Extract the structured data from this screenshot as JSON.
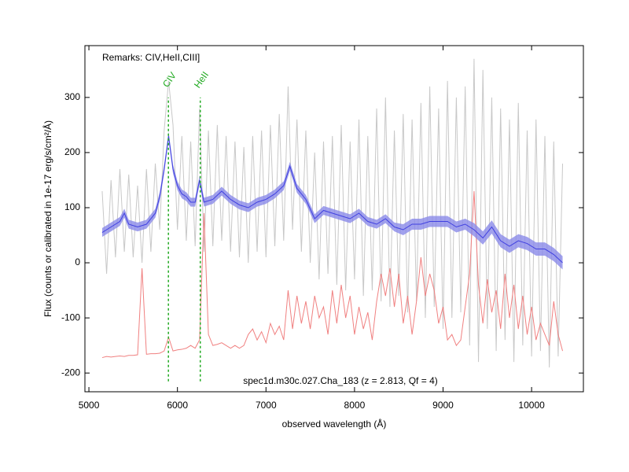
{
  "chart_data": {
    "type": "line",
    "title": "spec1d.m30c.027.Cha_183 (z = 2.813, Qf = 4)",
    "remarks": "Remarks: CIV,HeII,CIII]",
    "x_label": "observed wavelength (Å)",
    "y_label": "Flux (counts or calibrated in 1e-17 erg/s/cm²/Å)",
    "xlim": [
      4955,
      10585
    ],
    "ylim": [
      -234,
      394
    ],
    "xticks": [
      5000,
      6000,
      7000,
      8000,
      9000,
      10000
    ],
    "yticks": [
      -200,
      -100,
      0,
      100,
      200,
      300
    ],
    "annotations": [
      {
        "text": "CIV",
        "x": 5898,
        "ymin": -215,
        "ymax": 300,
        "color": "#22aa22"
      },
      {
        "text": "HeII",
        "x": 6258,
        "ymin": -215,
        "ymax": 300,
        "color": "#22aa22"
      }
    ],
    "series": [
      {
        "color": "#c8c8c8",
        "x": [
          5150,
          5200,
          5250,
          5300,
          5350,
          5400,
          5450,
          5500,
          5550,
          5600,
          5650,
          5700,
          5750,
          5800,
          5850,
          5900,
          5950,
          6000,
          6050,
          6100,
          6150,
          6200,
          6250,
          6300,
          6350,
          6400,
          6450,
          6500,
          6550,
          6600,
          6650,
          6700,
          6750,
          6800,
          6850,
          6900,
          6950,
          7000,
          7050,
          7100,
          7150,
          7200,
          7250,
          7300,
          7350,
          7400,
          7450,
          7500,
          7550,
          7600,
          7650,
          7700,
          7750,
          7800,
          7850,
          7900,
          7950,
          8000,
          8050,
          8100,
          8150,
          8200,
          8250,
          8300,
          8350,
          8400,
          8450,
          8500,
          8550,
          8600,
          8650,
          8700,
          8750,
          8800,
          8850,
          8900,
          8950,
          9000,
          9050,
          9100,
          9150,
          9200,
          9250,
          9300,
          9350,
          9400,
          9450,
          9500,
          9550,
          9600,
          9650,
          9700,
          9750,
          9800,
          9850,
          9900,
          9950,
          10000,
          10050,
          10100,
          10150,
          10200,
          10250,
          10300,
          10350
        ],
        "values": [
          130,
          -20,
          150,
          10,
          170,
          20,
          160,
          10,
          140,
          0,
          170,
          20,
          180,
          60,
          240,
          330,
          250,
          60,
          230,
          40,
          220,
          30,
          280,
          20,
          240,
          30,
          250,
          40,
          230,
          20,
          220,
          10,
          210,
          0,
          230,
          20,
          240,
          10,
          250,
          30,
          270,
          40,
          320,
          60,
          260,
          20,
          240,
          0,
          200,
          -30,
          220,
          -20,
          230,
          -40,
          250,
          -50,
          220,
          -30,
          260,
          -60,
          230,
          -50,
          280,
          -70,
          300,
          -80,
          240,
          -60,
          270,
          -90,
          260,
          -70,
          290,
          -100,
          320,
          -80,
          280,
          -120,
          330,
          -100,
          300,
          -90,
          320,
          -150,
          370,
          -180,
          350,
          -120,
          300,
          -160,
          280,
          -140,
          260,
          -180,
          290,
          -150,
          240,
          -170,
          260,
          -160,
          230,
          -190,
          220,
          -170,
          180
        ]
      },
      {
        "color": "#f08080",
        "x": [
          5150,
          5200,
          5250,
          5300,
          5350,
          5400,
          5450,
          5500,
          5550,
          5600,
          5650,
          5700,
          5750,
          5800,
          5850,
          5900,
          5950,
          6000,
          6050,
          6100,
          6150,
          6200,
          6250,
          6300,
          6350,
          6400,
          6450,
          6500,
          6550,
          6600,
          6650,
          6700,
          6750,
          6800,
          6850,
          6900,
          6950,
          7000,
          7050,
          7100,
          7150,
          7200,
          7250,
          7300,
          7350,
          7400,
          7450,
          7500,
          7550,
          7600,
          7650,
          7700,
          7750,
          7800,
          7850,
          7900,
          7950,
          8000,
          8050,
          8100,
          8150,
          8200,
          8250,
          8300,
          8350,
          8400,
          8450,
          8500,
          8550,
          8600,
          8650,
          8700,
          8750,
          8800,
          8850,
          8900,
          8950,
          9000,
          9050,
          9100,
          9150,
          9200,
          9250,
          9300,
          9350,
          9400,
          9450,
          9500,
          9550,
          9600,
          9650,
          9700,
          9750,
          9800,
          9850,
          9900,
          9950,
          10000,
          10050,
          10100,
          10150,
          10200,
          10250,
          10300,
          10350
        ],
        "values": [
          -172,
          -170,
          -171,
          -170,
          -169,
          -170,
          -168,
          -168,
          -167,
          -10,
          -166,
          -165,
          -165,
          -164,
          -160,
          -135,
          -160,
          -158,
          -157,
          -155,
          -150,
          -155,
          -140,
          90,
          -130,
          -150,
          -148,
          -145,
          -150,
          -155,
          -150,
          -155,
          -150,
          -130,
          -120,
          -140,
          -125,
          -145,
          -110,
          -130,
          -115,
          -140,
          -50,
          -120,
          -60,
          -110,
          -70,
          -120,
          -60,
          -100,
          -80,
          -130,
          -50,
          -110,
          -40,
          -100,
          -60,
          -130,
          -80,
          -120,
          -90,
          -140,
          -70,
          -20,
          -60,
          -10,
          -80,
          -20,
          -110,
          -60,
          -130,
          -70,
          10,
          -60,
          -20,
          -50,
          -110,
          -80,
          -140,
          -130,
          -150,
          -140,
          -80,
          -20,
          130,
          -40,
          -110,
          -30,
          -90,
          -50,
          -120,
          -20,
          -100,
          -40,
          -120,
          -60,
          -130,
          -80,
          -140,
          -110,
          -130,
          -150,
          -70,
          -130,
          -160
        ]
      },
      {
        "color": "#4040e0",
        "band_color": "#8a8ae8",
        "x": [
          5150,
          5250,
          5350,
          5400,
          5450,
          5550,
          5650,
          5750,
          5800,
          5850,
          5900,
          5950,
          6000,
          6050,
          6100,
          6150,
          6200,
          6250,
          6300,
          6400,
          6500,
          6600,
          6700,
          6800,
          6900,
          7000,
          7100,
          7200,
          7270,
          7350,
          7450,
          7550,
          7650,
          7750,
          7850,
          7950,
          8050,
          8150,
          8250,
          8350,
          8450,
          8550,
          8650,
          8750,
          8850,
          8950,
          9050,
          9150,
          9250,
          9350,
          9450,
          9550,
          9650,
          9750,
          9850,
          9950,
          10050,
          10150,
          10250,
          10350
        ],
        "values": [
          55,
          65,
          75,
          90,
          70,
          65,
          70,
          90,
          120,
          170,
          230,
          170,
          140,
          125,
          120,
          110,
          110,
          150,
          110,
          115,
          130,
          115,
          105,
          100,
          110,
          115,
          125,
          140,
          175,
          135,
          115,
          80,
          95,
          90,
          85,
          80,
          90,
          75,
          70,
          80,
          65,
          60,
          70,
          70,
          75,
          75,
          75,
          65,
          70,
          60,
          45,
          65,
          40,
          30,
          40,
          35,
          25,
          25,
          15,
          0
        ],
        "errors": [
          8,
          8,
          8,
          8,
          8,
          8,
          8,
          8,
          8,
          8,
          8,
          8,
          8,
          8,
          8,
          8,
          8,
          8,
          8,
          8,
          8,
          8,
          8,
          8,
          8,
          8,
          8,
          8,
          8,
          8,
          8,
          8,
          8,
          8,
          8,
          8,
          8,
          8,
          8,
          8,
          8,
          10,
          10,
          10,
          10,
          10,
          10,
          10,
          10,
          12,
          12,
          12,
          12,
          12,
          12,
          12,
          12,
          12,
          12,
          12
        ]
      }
    ]
  }
}
